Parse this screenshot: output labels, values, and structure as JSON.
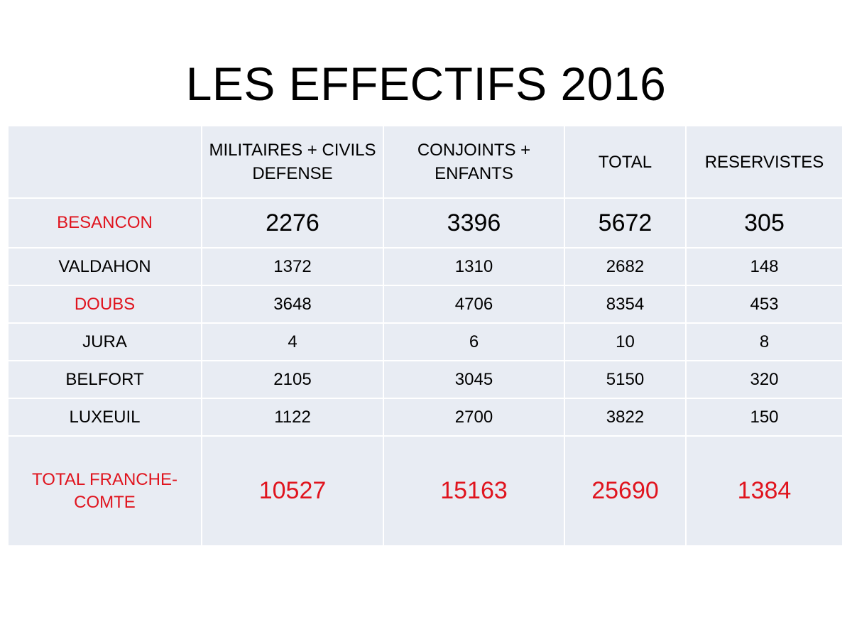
{
  "title": "LES EFFECTIFS 2016",
  "table": {
    "headers": [
      "",
      "MILITAIRES + CIVILS DEFENSE",
      "CONJOINTS + ENFANTS",
      "TOTAL",
      "RESERVISTES"
    ],
    "rows": [
      {
        "label": "BESANCON",
        "values": [
          "2276",
          "3396",
          "5672",
          "305"
        ]
      },
      {
        "label": "VALDAHON",
        "values": [
          "1372",
          "1310",
          "2682",
          "148"
        ]
      },
      {
        "label": "DOUBS",
        "values": [
          "3648",
          "4706",
          "8354",
          "453"
        ]
      },
      {
        "label": "JURA",
        "values": [
          "4",
          "6",
          "10",
          "8"
        ]
      },
      {
        "label": "BELFORT",
        "values": [
          "2105",
          "3045",
          "5150",
          "320"
        ]
      },
      {
        "label": "LUXEUIL",
        "values": [
          "1122",
          "2700",
          "3822",
          "150"
        ]
      },
      {
        "label": "TOTAL FRANCHE-COMTE",
        "values": [
          "10527",
          "15163",
          "25690",
          "1384"
        ]
      }
    ]
  },
  "colors": {
    "highlight": "#e0141e",
    "cell_background": "#e8ecf3"
  }
}
